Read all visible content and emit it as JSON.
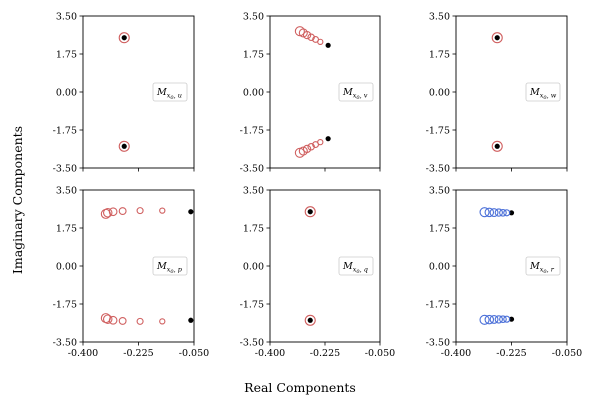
{
  "figure": {
    "xlabel": "Real Components",
    "ylabel": "Imaginary Components"
  },
  "chart_data": [
    {
      "type": "scatter",
      "panel": "u",
      "legend_main": "M",
      "legend_sub": "x",
      "legend_subsub": "0",
      "legend_suffix": ", u",
      "legend_position": "center-right",
      "xlim": [
        -0.4,
        -0.05
      ],
      "ylim": [
        -3.5,
        3.5
      ],
      "xticks": [
        "-0.400",
        "-0.225",
        "-0.050"
      ],
      "yticks": [
        "-3.50",
        "-1.75",
        "0.00",
        "1.75",
        "3.50"
      ],
      "show_xticklabels": false,
      "show_yticklabels": true,
      "open_color": "#d06060",
      "reference_points": [
        {
          "x": -0.27,
          "y": 2.5
        },
        {
          "x": -0.27,
          "y": -2.5
        }
      ],
      "open_points": [
        {
          "x": -0.27,
          "y": 2.5,
          "size": 5
        },
        {
          "x": -0.27,
          "y": -2.5,
          "size": 5
        }
      ]
    },
    {
      "type": "scatter",
      "panel": "v",
      "legend_main": "M",
      "legend_sub": "x",
      "legend_subsub": "0",
      "legend_suffix": ", v",
      "legend_position": "center-right",
      "xlim": [
        -0.4,
        -0.05
      ],
      "ylim": [
        -3.5,
        3.5
      ],
      "xticks": [
        "-0.400",
        "-0.225",
        "-0.050"
      ],
      "yticks": [
        "-3.50",
        "-1.75",
        "0.00",
        "1.75",
        "3.50"
      ],
      "show_xticklabels": false,
      "show_yticklabels": true,
      "open_color": "#d06060",
      "reference_points": [
        {
          "x": -0.215,
          "y": 2.15
        },
        {
          "x": -0.215,
          "y": -2.15
        }
      ],
      "open_points": [
        {
          "x": -0.305,
          "y": 2.8,
          "size": 4.5
        },
        {
          "x": -0.294,
          "y": 2.72,
          "size": 4
        },
        {
          "x": -0.282,
          "y": 2.62,
          "size": 3.6
        },
        {
          "x": -0.269,
          "y": 2.52,
          "size": 3.2
        },
        {
          "x": -0.255,
          "y": 2.42,
          "size": 2.9
        },
        {
          "x": -0.24,
          "y": 2.31,
          "size": 2.6
        },
        {
          "x": -0.305,
          "y": -2.8,
          "size": 4.5
        },
        {
          "x": -0.294,
          "y": -2.72,
          "size": 4
        },
        {
          "x": -0.282,
          "y": -2.62,
          "size": 3.6
        },
        {
          "x": -0.269,
          "y": -2.52,
          "size": 3.2
        },
        {
          "x": -0.255,
          "y": -2.42,
          "size": 2.9
        },
        {
          "x": -0.24,
          "y": -2.31,
          "size": 2.6
        }
      ]
    },
    {
      "type": "scatter",
      "panel": "w",
      "legend_main": "M",
      "legend_sub": "x",
      "legend_subsub": "0",
      "legend_suffix": ", w",
      "legend_position": "center-right",
      "xlim": [
        -0.4,
        -0.05
      ],
      "ylim": [
        -3.5,
        3.5
      ],
      "xticks": [
        "-0.400",
        "-0.225",
        "-0.050"
      ],
      "yticks": [
        "-3.50",
        "-1.75",
        "0.00",
        "1.75",
        "3.50"
      ],
      "show_xticklabels": false,
      "show_yticklabels": true,
      "open_color": "#d06060",
      "reference_points": [
        {
          "x": -0.27,
          "y": 2.5
        },
        {
          "x": -0.27,
          "y": -2.5
        }
      ],
      "open_points": [
        {
          "x": -0.27,
          "y": 2.5,
          "size": 5
        },
        {
          "x": -0.27,
          "y": -2.5,
          "size": 5
        }
      ]
    },
    {
      "type": "scatter",
      "panel": "p",
      "legend_main": "M",
      "legend_sub": "x",
      "legend_subsub": "0",
      "legend_suffix": ", p",
      "legend_position": "center-right",
      "xlim": [
        -0.4,
        -0.05
      ],
      "ylim": [
        -3.5,
        3.5
      ],
      "xticks": [
        "-0.400",
        "-0.225",
        "-0.050"
      ],
      "yticks": [
        "-3.50",
        "-1.75",
        "0.00",
        "1.75",
        "3.50"
      ],
      "show_xticklabels": true,
      "show_yticklabels": true,
      "open_color": "#d06060",
      "reference_points": [
        {
          "x": -0.06,
          "y": 2.5
        },
        {
          "x": -0.06,
          "y": -2.5
        }
      ],
      "open_points": [
        {
          "x": -0.328,
          "y": 2.4,
          "size": 4.5
        },
        {
          "x": -0.322,
          "y": 2.45,
          "size": 4.2
        },
        {
          "x": -0.305,
          "y": 2.5,
          "size": 3.8
        },
        {
          "x": -0.275,
          "y": 2.53,
          "size": 3.4
        },
        {
          "x": -0.22,
          "y": 2.55,
          "size": 3
        },
        {
          "x": -0.15,
          "y": 2.55,
          "size": 2.6
        },
        {
          "x": -0.328,
          "y": -2.4,
          "size": 4.5
        },
        {
          "x": -0.322,
          "y": -2.45,
          "size": 4.2
        },
        {
          "x": -0.305,
          "y": -2.5,
          "size": 3.8
        },
        {
          "x": -0.275,
          "y": -2.53,
          "size": 3.4
        },
        {
          "x": -0.22,
          "y": -2.55,
          "size": 3
        },
        {
          "x": -0.15,
          "y": -2.55,
          "size": 2.6
        }
      ]
    },
    {
      "type": "scatter",
      "panel": "q",
      "legend_main": "M",
      "legend_sub": "x",
      "legend_subsub": "0",
      "legend_suffix": ", q",
      "legend_position": "center-right",
      "xlim": [
        -0.4,
        -0.05
      ],
      "ylim": [
        -3.5,
        3.5
      ],
      "xticks": [
        "-0.400",
        "-0.225",
        "-0.050"
      ],
      "yticks": [
        "-3.50",
        "-1.75",
        "0.00",
        "1.75",
        "3.50"
      ],
      "show_xticklabels": true,
      "show_yticklabels": true,
      "open_color": "#d06060",
      "reference_points": [
        {
          "x": -0.272,
          "y": 2.5
        },
        {
          "x": -0.272,
          "y": -2.5
        }
      ],
      "open_points": [
        {
          "x": -0.272,
          "y": 2.5,
          "size": 5
        },
        {
          "x": -0.272,
          "y": -2.5,
          "size": 5
        }
      ]
    },
    {
      "type": "scatter",
      "panel": "r",
      "legend_main": "M",
      "legend_sub": "x",
      "legend_subsub": "0",
      "legend_suffix": ", r",
      "legend_position": "center-right",
      "xlim": [
        -0.4,
        -0.05
      ],
      "ylim": [
        -3.5,
        3.5
      ],
      "xticks": [
        "-0.400",
        "-0.225",
        "-0.050"
      ],
      "yticks": [
        "-3.50",
        "-1.75",
        "0.00",
        "1.75",
        "3.50"
      ],
      "show_xticklabels": true,
      "show_yticklabels": true,
      "open_color": "#4a6fd8",
      "reference_points": [
        {
          "x": -0.225,
          "y": 2.45
        },
        {
          "x": -0.225,
          "y": -2.45
        }
      ],
      "open_points": [
        {
          "x": -0.31,
          "y": 2.48,
          "size": 4.5
        },
        {
          "x": -0.295,
          "y": 2.47,
          "size": 4.2
        },
        {
          "x": -0.28,
          "y": 2.46,
          "size": 3.9
        },
        {
          "x": -0.265,
          "y": 2.46,
          "size": 3.6
        },
        {
          "x": -0.252,
          "y": 2.45,
          "size": 3.3
        },
        {
          "x": -0.24,
          "y": 2.45,
          "size": 3
        },
        {
          "x": -0.31,
          "y": -2.48,
          "size": 4.5
        },
        {
          "x": -0.295,
          "y": -2.47,
          "size": 4.2
        },
        {
          "x": -0.28,
          "y": -2.46,
          "size": 3.9
        },
        {
          "x": -0.265,
          "y": -2.46,
          "size": 3.6
        },
        {
          "x": -0.252,
          "y": -2.45,
          "size": 3.3
        },
        {
          "x": -0.24,
          "y": -2.45,
          "size": 3
        }
      ]
    }
  ]
}
